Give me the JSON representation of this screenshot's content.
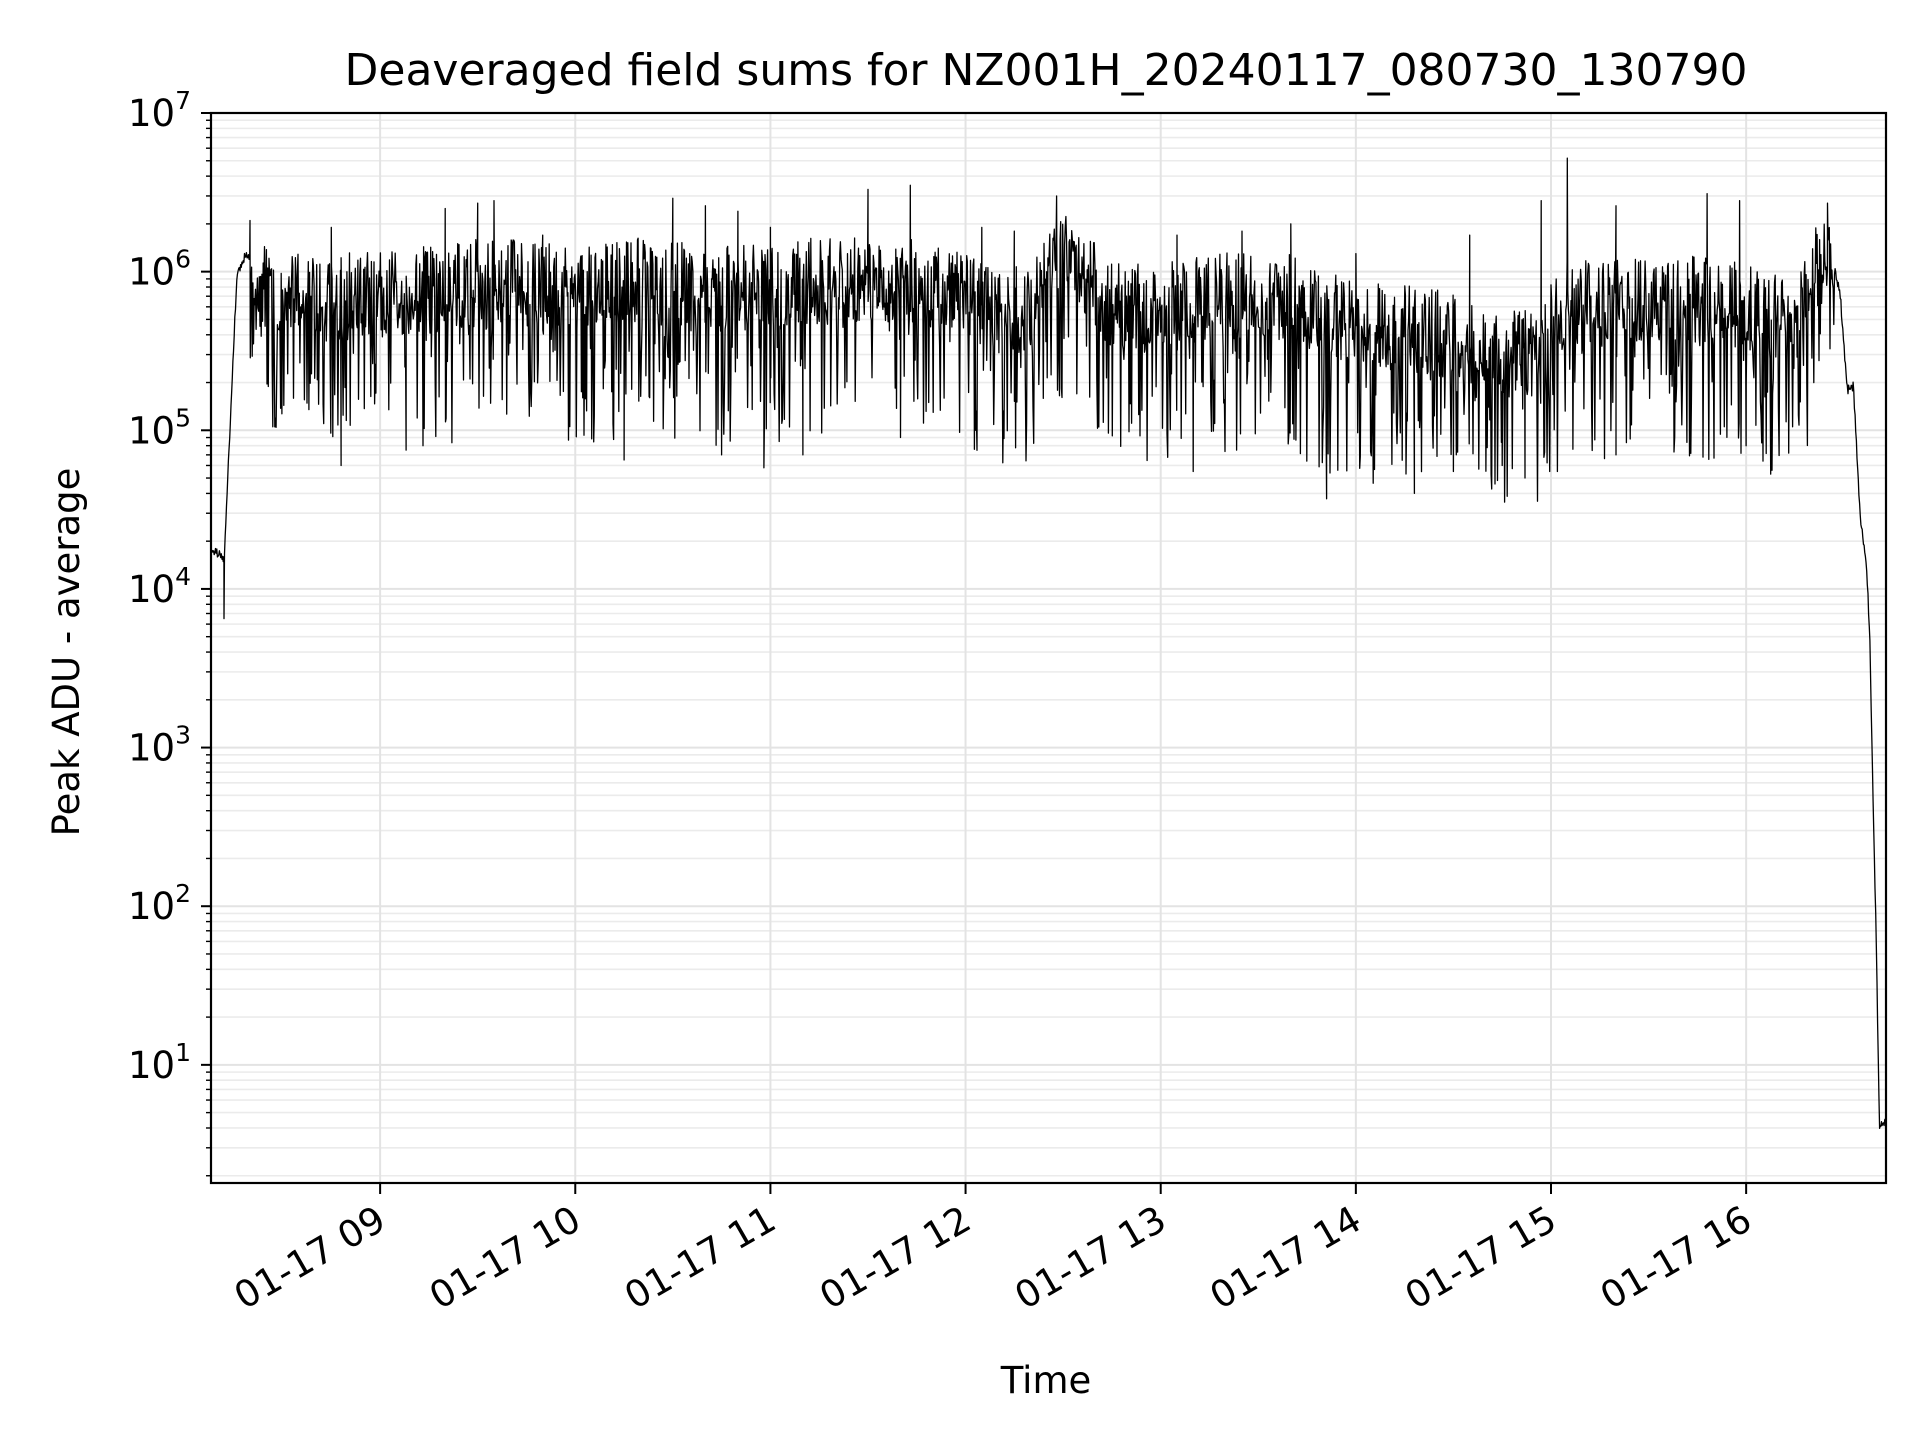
{
  "chart_data": {
    "type": "line",
    "title": "Deaveraged field sums for NZ001H_20240117_080730_130790",
    "xlabel": "Time",
    "ylabel": "Peak ADU - average",
    "yscale": "log",
    "ylim": [
      1.8,
      10000000
    ],
    "xlim": [
      "2024-01-17 08:08",
      "2024-01-17 16:43"
    ],
    "grid": true,
    "line_color": "#000000",
    "x_ticks": [
      {
        "value": "2024-01-17 09:00",
        "label": "01-17 09"
      },
      {
        "value": "2024-01-17 10:00",
        "label": "01-17 10"
      },
      {
        "value": "2024-01-17 11:00",
        "label": "01-17 11"
      },
      {
        "value": "2024-01-17 12:00",
        "label": "01-17 12"
      },
      {
        "value": "2024-01-17 13:00",
        "label": "01-17 13"
      },
      {
        "value": "2024-01-17 14:00",
        "label": "01-17 14"
      },
      {
        "value": "2024-01-17 15:00",
        "label": "01-17 15"
      },
      {
        "value": "2024-01-17 16:00",
        "label": "01-17 16"
      }
    ],
    "y_ticks": [
      {
        "value": 10,
        "base": "10",
        "exp": "1"
      },
      {
        "value": 100,
        "base": "10",
        "exp": "2"
      },
      {
        "value": 1000,
        "base": "10",
        "exp": "3"
      },
      {
        "value": 10000,
        "base": "10",
        "exp": "4"
      },
      {
        "value": 100000,
        "base": "10",
        "exp": "5"
      },
      {
        "value": 1000000,
        "base": "10",
        "exp": "6"
      },
      {
        "value": 10000000,
        "base": "10",
        "exp": "7"
      }
    ],
    "series": [
      {
        "style": "noisy-envelope",
        "x": [
          "2024-01-17 08:08",
          "2024-01-17 08:10",
          "2024-01-17 08:12",
          "2024-01-17 08:14",
          "2024-01-17 08:16",
          "2024-01-17 08:19",
          "2024-01-17 08:25",
          "2024-01-17 08:40",
          "2024-01-17 09:00",
          "2024-01-17 09:20",
          "2024-01-17 09:40",
          "2024-01-17 10:00",
          "2024-01-17 10:20",
          "2024-01-17 10:40",
          "2024-01-17 11:00",
          "2024-01-17 11:20",
          "2024-01-17 11:40",
          "2024-01-17 12:00",
          "2024-01-17 12:20",
          "2024-01-17 12:30",
          "2024-01-17 12:45",
          "2024-01-17 13:00",
          "2024-01-17 13:20",
          "2024-01-17 13:40",
          "2024-01-17 14:00",
          "2024-01-17 14:20",
          "2024-01-17 14:40",
          "2024-01-17 14:55",
          "2024-01-17 15:05",
          "2024-01-17 15:20",
          "2024-01-17 15:40",
          "2024-01-17 16:00",
          "2024-01-17 16:15",
          "2024-01-17 16:22",
          "2024-01-17 16:26",
          "2024-01-17 16:29",
          "2024-01-17 16:31",
          "2024-01-17 16:33",
          "2024-01-17 16:35",
          "2024-01-17 16:37",
          "2024-01-17 16:38",
          "2024-01-17 16:39",
          "2024-01-17 16:40",
          "2024-01-17 16:41",
          "2024-01-17 16:43"
        ],
        "y": [
          18000,
          17000,
          15000,
          120000,
          1000000,
          1300000,
          800000,
          700000,
          700000,
          800000,
          900000,
          800000,
          900000,
          800000,
          800000,
          900000,
          900000,
          700000,
          550000,
          1600000,
          600000,
          600000,
          700000,
          700000,
          450000,
          450000,
          320000,
          300000,
          700000,
          650000,
          700000,
          600000,
          450000,
          1200000,
          1300000,
          700000,
          180000,
          190000,
          30000,
          14000,
          5000,
          500,
          60,
          4,
          4.5
        ],
        "spike_high": [
          2100000,
          1900000,
          2500000,
          2700000,
          2800000,
          1700000,
          2900000,
          2600000,
          2400000,
          1900000,
          3300000,
          3500000,
          1900000,
          1800000,
          3000000,
          2000000,
          1700000,
          1800000,
          1300000,
          1700000,
          5200000,
          2800000,
          2600000,
          3100000,
          2800000,
          2700000
        ],
        "spike_high_x": [
          "2024-01-17 08:20",
          "2024-01-17 08:45",
          "2024-01-17 09:20",
          "2024-01-17 09:30",
          "2024-01-17 09:35",
          "2024-01-17 09:50",
          "2024-01-17 10:30",
          "2024-01-17 10:40",
          "2024-01-17 10:50",
          "2024-01-17 11:00",
          "2024-01-17 11:30",
          "2024-01-17 11:43",
          "2024-01-17 12:05",
          "2024-01-17 12:15",
          "2024-01-17 12:28",
          "2024-01-17 13:40",
          "2024-01-17 13:05",
          "2024-01-17 13:25",
          "2024-01-17 14:00",
          "2024-01-17 14:35",
          "2024-01-17 15:05",
          "2024-01-17 14:57",
          "2024-01-17 15:20",
          "2024-01-17 15:48",
          "2024-01-17 15:58",
          "2024-01-17 16:25"
        ],
        "spike_low": [
          6500,
          60000,
          75000,
          65000,
          70000,
          58000,
          70000,
          90000,
          55000,
          37000,
          40000,
          55000,
          50000,
          60000,
          70000,
          80000
        ],
        "spike_low_x": [
          "2024-01-17 08:12",
          "2024-01-17 08:48",
          "2024-01-17 09:08",
          "2024-01-17 10:15",
          "2024-01-17 10:45",
          "2024-01-17 10:58",
          "2024-01-17 11:10",
          "2024-01-17 11:40",
          "2024-01-17 13:10",
          "2024-01-17 13:51",
          "2024-01-17 14:18",
          "2024-01-17 14:30",
          "2024-01-17 14:52",
          "2024-01-17 14:45",
          "2024-01-17 15:20",
          "2024-01-17 16:00"
        ]
      }
    ]
  }
}
